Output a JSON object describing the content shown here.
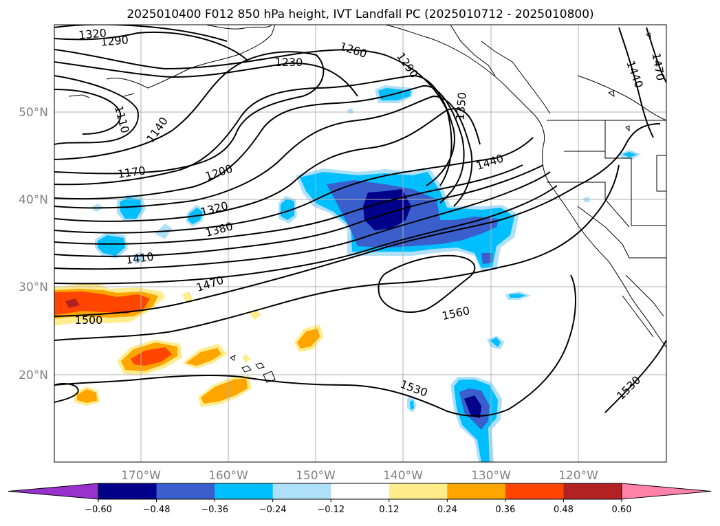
{
  "title": "2025010400 F012 850 hPa height, IVT Landfall PC (2025010712 - 2025010800)",
  "lat_labels": [
    "50°N",
    "40°N",
    "30°N",
    "20°N"
  ],
  "lon_labels": [
    "170°W",
    "160°W",
    "150°W",
    "140°W",
    "130°W",
    "120°W"
  ],
  "contour_labels": [
    "1320",
    "1290",
    "1230",
    "1260",
    "1290",
    "1350",
    "1110",
    "1140",
    "1170",
    "1200",
    "1320",
    "1380",
    "1410",
    "1440",
    "1470",
    "1500",
    "1470",
    "1440",
    "1560",
    "1530",
    "1530"
  ],
  "colorbar": {
    "ticks": [
      "−0.60",
      "−0.48",
      "−0.36",
      "−0.24",
      "−0.12",
      "0.12",
      "0.24",
      "0.36",
      "0.48",
      "0.60"
    ],
    "colors": [
      "#9932cc",
      "#00008b",
      "#3a5fcd",
      "#00bfff",
      "#afe0fa",
      "#ffffff",
      "#ffec8b",
      "#ffa500",
      "#ff4500",
      "#b22222",
      "#ff82ab"
    ]
  },
  "map_data": {
    "field": "850 hPa height contours (m) with IVT landfall PC shading",
    "lon_range": [
      180,
      110
    ],
    "lat_range": [
      10,
      60
    ],
    "gridlines": true
  }
}
